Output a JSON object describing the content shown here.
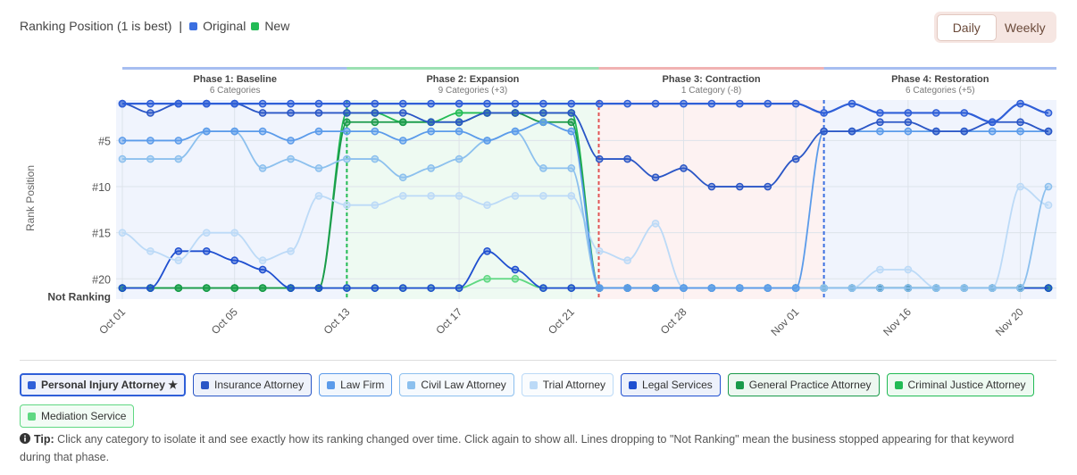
{
  "header": {
    "title": "Ranking Position (1 is best)",
    "legend": [
      {
        "label": "Original",
        "color": "#3b6fe0"
      },
      {
        "label": "New",
        "color": "#22bb55"
      }
    ]
  },
  "controls": {
    "options": [
      "Daily",
      "Weekly"
    ],
    "selected": 0
  },
  "chart_data": {
    "type": "line",
    "y_label": "Rank Position",
    "y_reversed": true,
    "grid": true,
    "ylim": [
      0.6,
      22.2
    ],
    "yticks": [
      {
        "value": 5,
        "label": "#5"
      },
      {
        "value": 10,
        "label": "#10"
      },
      {
        "value": 15,
        "label": "#15"
      },
      {
        "value": 20,
        "label": "#20"
      },
      {
        "value": 21,
        "label": "Not Ranking"
      }
    ],
    "categories": [
      "Oct 01",
      null,
      null,
      null,
      "Oct 05",
      null,
      null,
      null,
      "Oct 13",
      null,
      null,
      null,
      "Oct 17",
      null,
      null,
      null,
      "Oct 21",
      null,
      null,
      null,
      "Oct 28",
      null,
      null,
      null,
      "Nov 01",
      null,
      null,
      null,
      "Nov 16",
      null,
      null,
      null,
      "Nov 20",
      null
    ],
    "phases": [
      {
        "title": "Phase 1: Baseline",
        "subtitle": "6 Categories",
        "color": "#3b6fe0"
      },
      {
        "title": "Phase 2: Expansion",
        "subtitle": "9 Categories (+3)",
        "color": "#22bb55"
      },
      {
        "title": "Phase 3: Contraction",
        "subtitle": "1 Category (-8)",
        "color": "#e05555"
      },
      {
        "title": "Phase 4: Restoration",
        "subtitle": "6 Categories (+5)",
        "color": "#3b6fe0"
      }
    ],
    "series": [
      {
        "name": "Personal Injury Attorney ★",
        "color": "#2f5fd8",
        "selected": true,
        "values": [
          1,
          1,
          1,
          1,
          1,
          1,
          1,
          1,
          1,
          1,
          1,
          1,
          1,
          1,
          1,
          1,
          1,
          1,
          1,
          1,
          1,
          1,
          1,
          1,
          1,
          2,
          1,
          2,
          2,
          2,
          2,
          3,
          1,
          2
        ]
      },
      {
        "name": "Insurance Attorney",
        "color": "#2a56c6",
        "values": [
          1,
          2,
          1,
          1,
          1,
          2,
          2,
          2,
          2,
          2,
          2,
          3,
          3,
          2,
          2,
          2,
          2,
          7,
          7,
          9,
          8,
          10,
          10,
          10,
          7,
          4,
          4,
          3,
          3,
          4,
          4,
          3,
          3,
          4
        ]
      },
      {
        "name": "Law Firm",
        "color": "#5b9bea",
        "values": [
          5,
          5,
          5,
          4,
          4,
          4,
          5,
          4,
          4,
          4,
          5,
          4,
          4,
          5,
          4,
          3,
          4,
          21,
          21,
          21,
          21,
          21,
          21,
          21,
          21,
          4,
          4,
          4,
          4,
          4,
          4,
          4,
          4,
          4
        ]
      },
      {
        "name": "Civil Law Attorney",
        "color": "#8cc0ee",
        "values": [
          7,
          7,
          7,
          4,
          4,
          8,
          7,
          8,
          7,
          7,
          9,
          8,
          7,
          5,
          4,
          8,
          8,
          21,
          21,
          21,
          21,
          21,
          21,
          21,
          21,
          21,
          21,
          21,
          21,
          21,
          21,
          21,
          21,
          10
        ]
      },
      {
        "name": "Trial Attorney",
        "color": "#bcdaf7",
        "values": [
          15,
          17,
          18,
          15,
          15,
          18,
          17,
          11,
          12,
          12,
          11,
          11,
          11,
          12,
          11,
          11,
          11,
          17,
          18,
          14,
          21,
          21,
          21,
          21,
          21,
          21,
          21,
          19,
          19,
          21,
          21,
          21,
          10,
          12
        ]
      },
      {
        "name": "Legal Services",
        "color": "#1f4fd0",
        "values": [
          21,
          21,
          17,
          17,
          18,
          19,
          21,
          21,
          21,
          21,
          21,
          21,
          21,
          17,
          19,
          21,
          21,
          21,
          21,
          21,
          21,
          21,
          21,
          21,
          21,
          21,
          21,
          21,
          21,
          21,
          21,
          21,
          21,
          21
        ]
      },
      {
        "name": "General Practice Attorney",
        "color": "#1a9a4a",
        "values": [
          21,
          21,
          21,
          21,
          21,
          21,
          21,
          21,
          3,
          3,
          3,
          3,
          3,
          2,
          2,
          3,
          3,
          21,
          21,
          21,
          21,
          21,
          21,
          21,
          21,
          21,
          21,
          21,
          21,
          21,
          21,
          21,
          21,
          21
        ]
      },
      {
        "name": "Criminal Justice Attorney",
        "color": "#22bb55",
        "values": [
          21,
          21,
          21,
          21,
          21,
          21,
          21,
          21,
          2,
          2,
          3,
          3,
          2,
          2,
          2,
          2,
          2,
          21,
          21,
          21,
          21,
          21,
          21,
          21,
          21,
          21,
          21,
          21,
          21,
          21,
          21,
          21,
          21,
          21
        ]
      },
      {
        "name": "Mediation Service",
        "color": "#5fd882",
        "values": [
          21,
          21,
          21,
          21,
          21,
          21,
          21,
          21,
          21,
          21,
          21,
          21,
          21,
          20,
          20,
          21,
          21,
          21,
          21,
          21,
          21,
          21,
          21,
          21,
          21,
          21,
          21,
          21,
          21,
          21,
          21,
          21,
          21,
          21
        ]
      }
    ]
  },
  "tip": {
    "label": "Tip:",
    "text": "Click any category to isolate it and see exactly how its ranking changed over time. Click again to show all. Lines dropping to \"Not Ranking\" mean the business stopped appearing for that keyword during that phase."
  }
}
